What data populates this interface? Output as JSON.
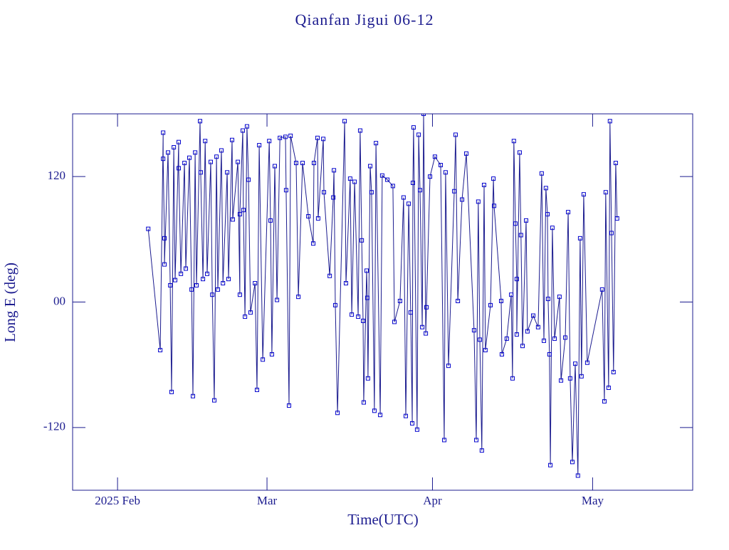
{
  "chart_data": {
    "type": "line",
    "title": "Qianfan Jigui 06-12",
    "x_label": "Time(UTC)",
    "y_label": "Long E (deg)",
    "color": "#1c1c8f",
    "xlim": [
      "2025-01-23T14",
      "2025-05-19T18"
    ],
    "xticks": [
      {
        "value": "2025-02-01T00",
        "label": "2025 Feb"
      },
      {
        "value": "2025-03-01T00",
        "label": "Mar"
      },
      {
        "value": "2025-04-01T00",
        "label": "Apr"
      },
      {
        "value": "2025-05-01T00",
        "label": "May"
      }
    ],
    "ylim": [
      -180,
      180
    ],
    "yticks": [
      -120,
      {
        "value": 0,
        "label": "00"
      },
      120
    ],
    "x": [
      "2025-02-06T18",
      "2025-02-09T00",
      "2025-02-09T13",
      "2025-02-09T13",
      "2025-02-09T19",
      "2025-02-09T19",
      "2025-02-10T11",
      "2025-02-10T21",
      "2025-02-11T03",
      "2025-02-11T13",
      "2025-02-11T19",
      "2025-02-12T11",
      "2025-02-12T11",
      "2025-02-12T21",
      "2025-02-13T13",
      "2025-02-13T19",
      "2025-02-14T11",
      "2025-02-14T21",
      "2025-02-15T03",
      "2025-02-15T13",
      "2025-02-15T19",
      "2025-02-16T11",
      "2025-02-16T14",
      "2025-02-17T00",
      "2025-02-17T10",
      "2025-02-17T19",
      "2025-02-18T11",
      "2025-02-18T18",
      "2025-02-19T03",
      "2025-02-19T13",
      "2025-02-19T19",
      "2025-02-20T11",
      "2025-02-20T18",
      "2025-02-21T13",
      "2025-02-21T19",
      "2025-02-22T11",
      "2025-02-22T14",
      "2025-02-23T13",
      "2025-02-23T22",
      "2025-02-23T22",
      "2025-02-24T11",
      "2025-02-24T14",
      "2025-02-24T21",
      "2025-02-25T06",
      "2025-02-25T13",
      "2025-02-25T22",
      "2025-02-26T18",
      "2025-02-27T03",
      "2025-02-27T13",
      "2025-02-28T05",
      "2025-03-01T10",
      "2025-03-01T16",
      "2025-03-01T22",
      "2025-03-02T11",
      "2025-03-02T21",
      "2025-03-03T10",
      "2025-03-04T11",
      "2025-03-04T14",
      "2025-03-05T03",
      "2025-03-05T10",
      "2025-03-06T11",
      "2025-03-06T21",
      "2025-03-07T16",
      "2025-03-08T18",
      "2025-03-09T16",
      "2025-03-09T19",
      "2025-03-10T11",
      "2025-03-10T14",
      "2025-03-11T13",
      "2025-03-11T16",
      "2025-03-12T18",
      "2025-03-13T10",
      "2025-03-13T13",
      "2025-03-13T19",
      "2025-03-14T05",
      "2025-03-15T13",
      "2025-03-15T19",
      "2025-03-16T14",
      "2025-03-16T21",
      "2025-03-17T10",
      "2025-03-18T02",
      "2025-03-18T11",
      "2025-03-18T18",
      "2025-03-19T00",
      "2025-03-19T03",
      "2025-03-19T16",
      "2025-03-19T19",
      "2025-03-19T22",
      "2025-03-20T08",
      "2025-03-20T14",
      "2025-03-21T03",
      "2025-03-21T10",
      "2025-03-22T05",
      "2025-03-22T14",
      "2025-03-23T13",
      "2025-03-24T14",
      "2025-03-24T21",
      "2025-03-25T22",
      "2025-03-26T14",
      "2025-03-27T00",
      "2025-03-27T13",
      "2025-03-27T22",
      "2025-03-28T05",
      "2025-03-28T08",
      "2025-03-28T11",
      "2025-03-29T03",
      "2025-03-29T10",
      "2025-03-29T16",
      "2025-03-30T02",
      "2025-03-30T08",
      "2025-03-30T18",
      "2025-03-30T21",
      "2025-03-31T13",
      "2025-04-01T11",
      "2025-04-02T13",
      "2025-04-03T05",
      "2025-04-03T11",
      "2025-04-04T00",
      "2025-04-05T02",
      "2025-04-05T08",
      "2025-04-05T18",
      "2025-04-06T13",
      "2025-04-07T08",
      "2025-04-08T19",
      "2025-04-09T05",
      "2025-04-09T14",
      "2025-04-09T21",
      "2025-04-10T06",
      "2025-04-10T16",
      "2025-04-10T22",
      "2025-04-11T21",
      "2025-04-12T10",
      "2025-04-12T13",
      "2025-04-13T21",
      "2025-04-14T00",
      "2025-04-14T22",
      "2025-04-15T18",
      "2025-04-16T00",
      "2025-04-16T06",
      "2025-04-16T13",
      "2025-04-16T19",
      "2025-04-16T19",
      "2025-04-17T08",
      "2025-04-17T14",
      "2025-04-17T21",
      "2025-04-18T13",
      "2025-04-18T19",
      "2025-04-19T21",
      "2025-04-20T19",
      "2025-04-21T11",
      "2025-04-21T21",
      "2025-04-22T06",
      "2025-04-22T13",
      "2025-04-22T16",
      "2025-04-22T22",
      "2025-04-23T02",
      "2025-04-23T11",
      "2025-04-23T21",
      "2025-04-24T19",
      "2025-04-25T02",
      "2025-04-25T21",
      "2025-04-26T10",
      "2025-04-26T19",
      "2025-04-27T05",
      "2025-04-27T18",
      "2025-04-28T06",
      "2025-04-28T16",
      "2025-04-28T22",
      "2025-04-29T08",
      "2025-04-30T00",
      "2025-05-02T19",
      "2025-05-03T05",
      "2025-05-03T11",
      "2025-05-04T00",
      "2025-05-04T06",
      "2025-05-04T13",
      "2025-05-04T22",
      "2025-05-05T08",
      "2025-05-05T14"
    ],
    "values": [
      70,
      -46,
      162,
      137,
      61,
      36,
      143,
      16,
      -86,
      148,
      21,
      153,
      128,
      27,
      133,
      32,
      138,
      12,
      -90,
      143,
      16,
      173,
      124,
      22,
      154,
      27,
      134,
      7,
      -94,
      139,
      12,
      145,
      18,
      124,
      22,
      155,
      79,
      134,
      7,
      84,
      164,
      88,
      -14,
      168,
      117,
      -10,
      18,
      -84,
      150,
      -55,
      154,
      78,
      -50,
      130,
      2,
      157,
      158,
      107,
      -99,
      159,
      133,
      5,
      133,
      82,
      56,
      133,
      157,
      80,
      156,
      105,
      25,
      100,
      126,
      -3,
      -106,
      173,
      18,
      118,
      -12,
      115,
      -14,
      164,
      59,
      -18,
      -96,
      30,
      4,
      -73,
      130,
      105,
      -104,
      152,
      -108,
      121,
      117,
      111,
      -19,
      1,
      100,
      -109,
      94,
      -10,
      -116,
      114,
      167,
      -122,
      160,
      107,
      -24,
      180,
      -30,
      -5,
      120,
      139,
      131,
      -132,
      124,
      -61,
      106,
      160,
      1,
      98,
      142,
      -27,
      -132,
      96,
      -36,
      -142,
      112,
      -46,
      -3,
      118,
      92,
      1,
      -50,
      -35,
      7,
      -73,
      154,
      75,
      22,
      -31,
      143,
      64,
      -42,
      78,
      -28,
      -13,
      -24,
      123,
      -37,
      109,
      84,
      3,
      -50,
      -156,
      71,
      -35,
      5,
      -75,
      -34,
      86,
      -73,
      -153,
      -59,
      -166,
      61,
      -71,
      103,
      -58,
      12,
      -95,
      105,
      -82,
      173,
      66,
      -67,
      133,
      80
    ]
  }
}
